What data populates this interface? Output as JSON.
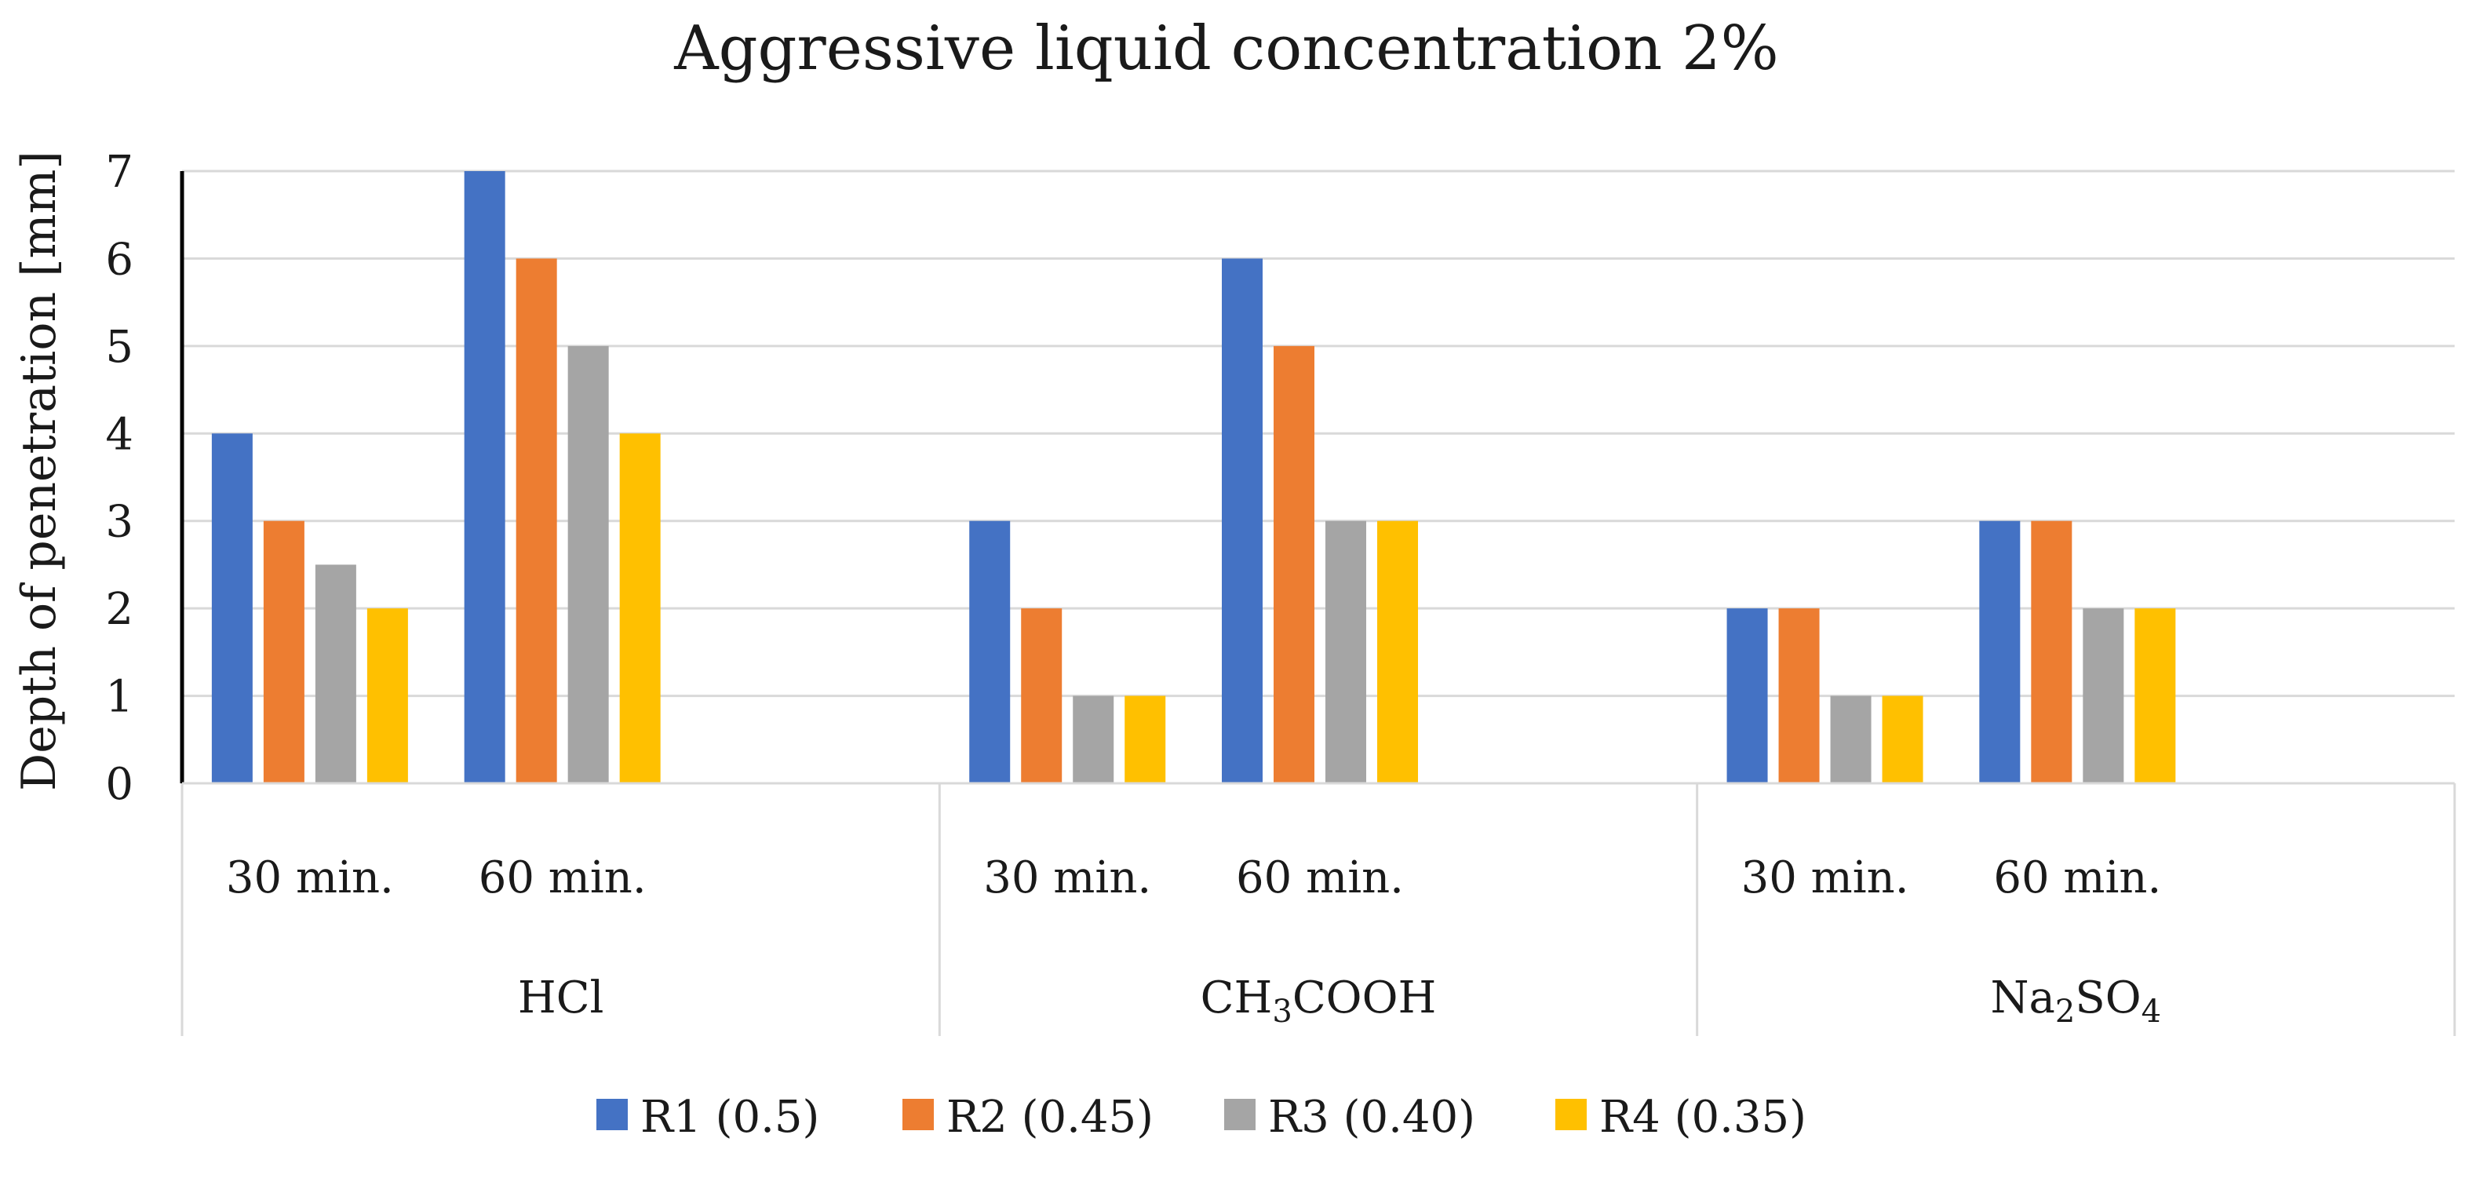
{
  "chart_data": {
    "type": "bar",
    "title": "Aggressive liquid concentration 2%",
    "ylabel": "Depth of penetration  [mm]",
    "xlabel": "",
    "ylim": [
      0,
      7
    ],
    "yticks": [
      0,
      1,
      2,
      3,
      4,
      5,
      6,
      7
    ],
    "grid": true,
    "legend_position": "bottom",
    "groups": [
      {
        "label": "HCl",
        "label_parts": [
          {
            "t": "HCl"
          }
        ],
        "categories": [
          "30 min.",
          "60 min."
        ]
      },
      {
        "label": "CH3COOH",
        "label_parts": [
          {
            "t": "CH"
          },
          {
            "t": "3",
            "sub": true
          },
          {
            "t": "COOH"
          }
        ],
        "categories": [
          "30 min.",
          "60 min."
        ]
      },
      {
        "label": "Na2SO4",
        "label_parts": [
          {
            "t": "Na"
          },
          {
            "t": "2",
            "sub": true
          },
          {
            "t": "SO"
          },
          {
            "t": "4",
            "sub": true
          }
        ],
        "categories": [
          "30 min.",
          "60 min."
        ]
      }
    ],
    "categories": [
      "HCl 30 min.",
      "HCl 60 min.",
      "CH3COOH 30 min.",
      "CH3COOH 60 min.",
      "Na2SO4 30 min.",
      "Na2SO4 60 min."
    ],
    "series": [
      {
        "name": "R1 (0.5)",
        "color": "#4472C4",
        "values": [
          4,
          7,
          3,
          6,
          2,
          3
        ]
      },
      {
        "name": "R2 (0.45)",
        "color": "#ED7D31",
        "values": [
          3,
          6,
          2,
          5,
          2,
          3
        ]
      },
      {
        "name": "R3 (0.40)",
        "color": "#A5A5A5",
        "values": [
          2.5,
          5,
          1,
          3,
          1,
          2
        ]
      },
      {
        "name": "R4 (0.35)",
        "color": "#FFC000",
        "values": [
          2,
          4,
          1,
          3,
          1,
          2
        ]
      }
    ]
  }
}
